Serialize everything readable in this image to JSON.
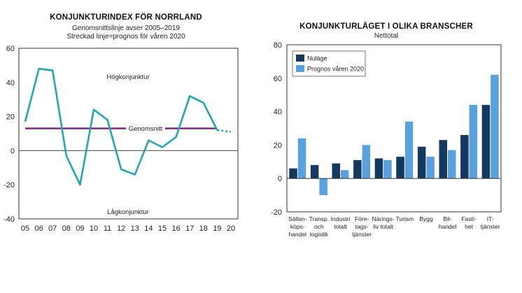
{
  "chart_data": [
    {
      "type": "line",
      "title": "KONJUNKTURINDEX FÖR NORRLAND",
      "subtitle_1": "Genomsnittslinje avser 2005–2019",
      "subtitle_2": "Streckad linje=prognos för våren 2020",
      "x": [
        "05",
        "06",
        "07",
        "08",
        "09",
        "10",
        "11",
        "12",
        "13",
        "14",
        "15",
        "16",
        "17",
        "18",
        "19",
        "20"
      ],
      "values": [
        17,
        48,
        47,
        -3,
        -20,
        24,
        18,
        -11,
        -14,
        6,
        2,
        8,
        32,
        28,
        12,
        11
      ],
      "forecast_from_index": 14,
      "average": {
        "label": "Genomsnitt",
        "value": 13
      },
      "zone_labels": {
        "upper": "Högkonjunktur",
        "lower": "Lågkonjunktur"
      },
      "ylim": [
        -40,
        60
      ],
      "yticks": [
        "60",
        "40",
        "20",
        "0",
        "-20",
        "-40"
      ],
      "colors": {
        "line": "#22a6b0",
        "average": "#7d2a86",
        "zero": "#444444"
      }
    },
    {
      "type": "bar",
      "title": "KONJUNKTURLÄGET I OLIKA BRANSCHER",
      "subtitle": "Nettotal",
      "categories": [
        [
          "Sällan-",
          "köps-",
          "handel"
        ],
        [
          "Transp.",
          "och",
          "logistik"
        ],
        [
          "Industri",
          "totalt"
        ],
        [
          "Före-",
          "tags-",
          "tjänster"
        ],
        [
          "Närings-",
          "liv totalt"
        ],
        [
          "Turism"
        ],
        [
          "Bygg"
        ],
        [
          "Bil-",
          "handel"
        ],
        [
          "Fasti-",
          "het"
        ],
        [
          "IT-",
          "tjänster"
        ]
      ],
      "series": [
        {
          "name": "Nuläge",
          "values": [
            6,
            8,
            9,
            11,
            12,
            13,
            19,
            23,
            26,
            44
          ],
          "color": "#14385e"
        },
        {
          "name": "Prognos våren 2020",
          "values": [
            24,
            -10,
            5,
            20,
            11,
            34,
            13,
            17,
            44,
            62
          ],
          "color": "#5aa0dc"
        }
      ],
      "ylim": [
        -20,
        80
      ],
      "yticks": [
        "80",
        "60",
        "40",
        "20",
        "0",
        "-20"
      ],
      "legend": "top-left"
    }
  ]
}
